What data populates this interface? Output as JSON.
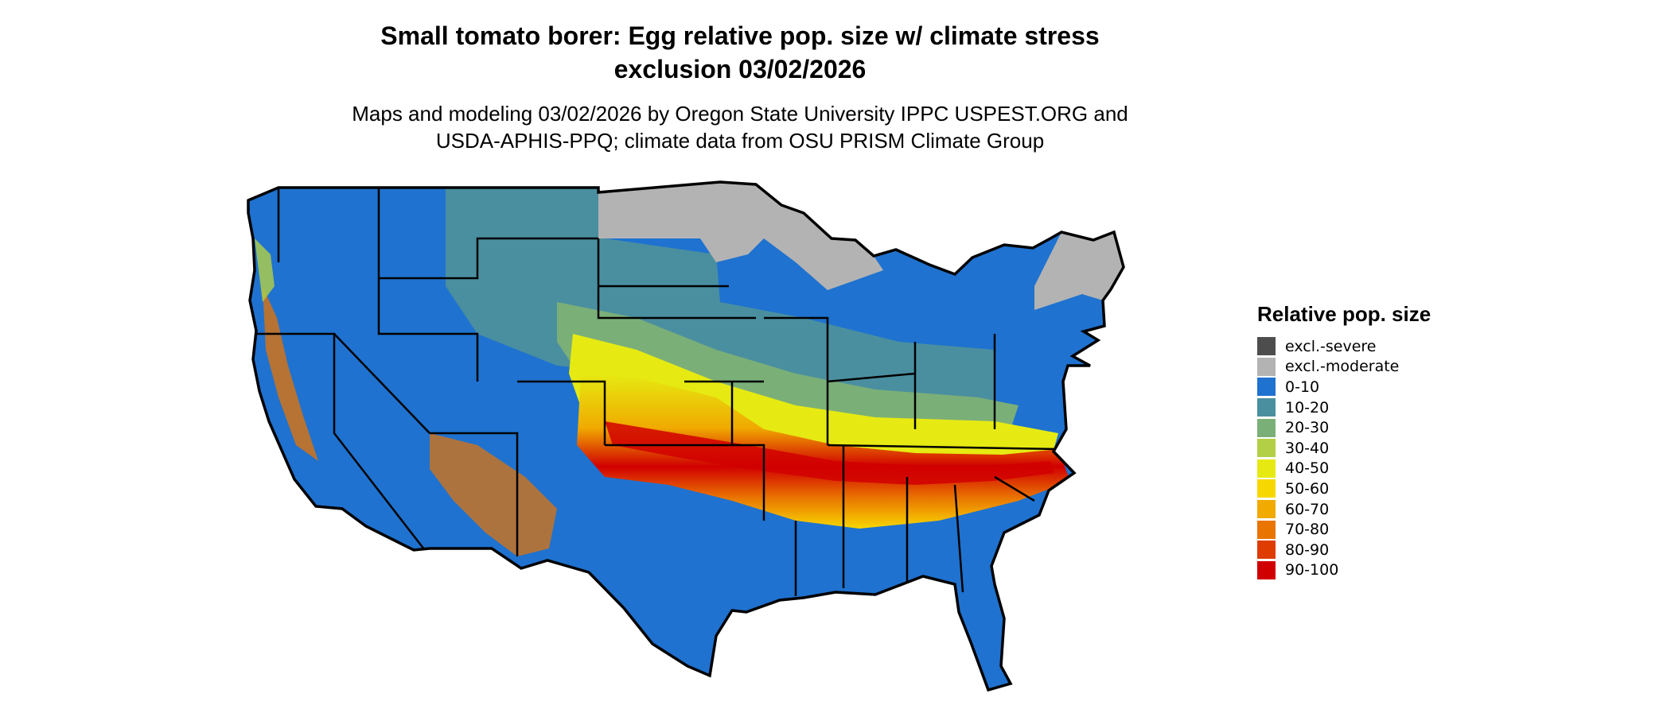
{
  "title_line1": "Small tomato borer: Egg relative pop. size w/ climate stress",
  "title_line2": "exclusion 03/02/2026",
  "subtitle_line1": "Maps and modeling 03/02/2026 by Oregon State University IPPC USPEST.ORG and",
  "subtitle_line2": "USDA-APHIS-PPQ; climate data from OSU PRISM Climate Group",
  "legend": {
    "title": "Relative pop. size",
    "items": [
      {
        "label": "excl.-severe",
        "color": "#4d4d4d"
      },
      {
        "label": "excl.-moderate",
        "color": "#b3b3b3"
      },
      {
        "label": "0-10",
        "color": "#1f72cf"
      },
      {
        "label": "10-20",
        "color": "#4a8fa0"
      },
      {
        "label": "20-30",
        "color": "#7baf78"
      },
      {
        "label": "30-40",
        "color": "#b3cf45"
      },
      {
        "label": "40-50",
        "color": "#e6ea12"
      },
      {
        "label": "50-60",
        "color": "#f7d700"
      },
      {
        "label": "60-70",
        "color": "#f0aa00"
      },
      {
        "label": "70-80",
        "color": "#e97400"
      },
      {
        "label": "80-90",
        "color": "#de3c00"
      },
      {
        "label": "90-100",
        "color": "#d10000"
      }
    ]
  }
}
